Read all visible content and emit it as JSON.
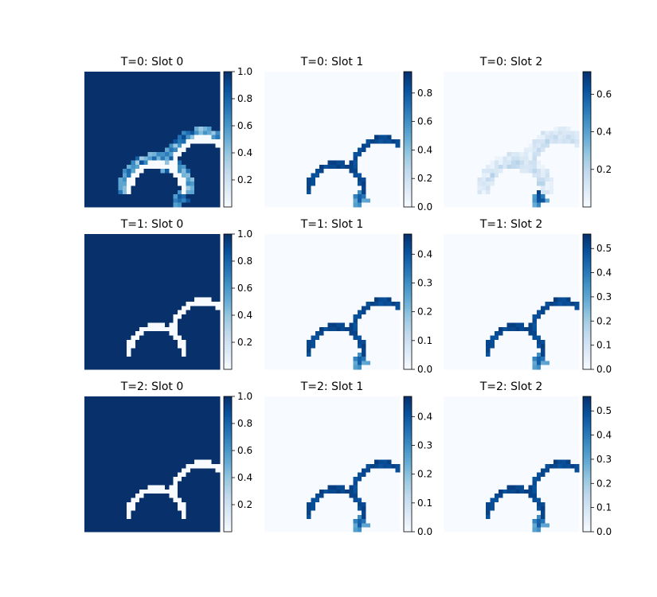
{
  "colormap": {
    "name": "Blues",
    "low": "#f7fbff",
    "high": "#08306b"
  },
  "chart_data": [
    {
      "type": "heatmap",
      "title": "T=0: Slot 0",
      "kind": "slot0",
      "step": 0,
      "colorbar": {
        "vmin": 0.0,
        "vmax": 1.0,
        "ticks": [
          0.2,
          0.4,
          0.6,
          0.8,
          1.0
        ]
      }
    },
    {
      "type": "heatmap",
      "title": "T=0: Slot 1",
      "kind": "edge",
      "step": 0,
      "colorbar": {
        "vmin": 0.0,
        "vmax": 0.95,
        "ticks": [
          0.0,
          0.2,
          0.4,
          0.6,
          0.8
        ]
      }
    },
    {
      "type": "heatmap",
      "title": "T=0: Slot 2",
      "kind": "faint",
      "step": 0,
      "colorbar": {
        "vmin": 0.0,
        "vmax": 0.72,
        "ticks": [
          0.2,
          0.4,
          0.6
        ]
      }
    },
    {
      "type": "heatmap",
      "title": "T=1: Slot 0",
      "kind": "slot0",
      "step": 1,
      "colorbar": {
        "vmin": 0.0,
        "vmax": 1.0,
        "ticks": [
          0.2,
          0.4,
          0.6,
          0.8,
          1.0
        ]
      }
    },
    {
      "type": "heatmap",
      "title": "T=1: Slot 1",
      "kind": "edge",
      "step": 1,
      "colorbar": {
        "vmin": 0.0,
        "vmax": 0.47,
        "ticks": [
          0.0,
          0.1,
          0.2,
          0.3,
          0.4
        ]
      }
    },
    {
      "type": "heatmap",
      "title": "T=1: Slot 2",
      "kind": "edge",
      "step": 1,
      "colorbar": {
        "vmin": 0.0,
        "vmax": 0.56,
        "ticks": [
          0.0,
          0.1,
          0.2,
          0.3,
          0.4,
          0.5
        ]
      }
    },
    {
      "type": "heatmap",
      "title": "T=2: Slot 0",
      "kind": "slot0",
      "step": 2,
      "colorbar": {
        "vmin": 0.0,
        "vmax": 1.0,
        "ticks": [
          0.2,
          0.4,
          0.6,
          0.8,
          1.0
        ]
      }
    },
    {
      "type": "heatmap",
      "title": "T=2: Slot 1",
      "kind": "edge",
      "step": 2,
      "colorbar": {
        "vmin": 0.0,
        "vmax": 0.47,
        "ticks": [
          0.0,
          0.1,
          0.2,
          0.3,
          0.4
        ]
      }
    },
    {
      "type": "heatmap",
      "title": "T=2: Slot 2",
      "kind": "edge",
      "step": 2,
      "colorbar": {
        "vmin": 0.0,
        "vmax": 0.56,
        "ticks": [
          0.0,
          0.1,
          0.2,
          0.3,
          0.4,
          0.5
        ]
      }
    }
  ]
}
